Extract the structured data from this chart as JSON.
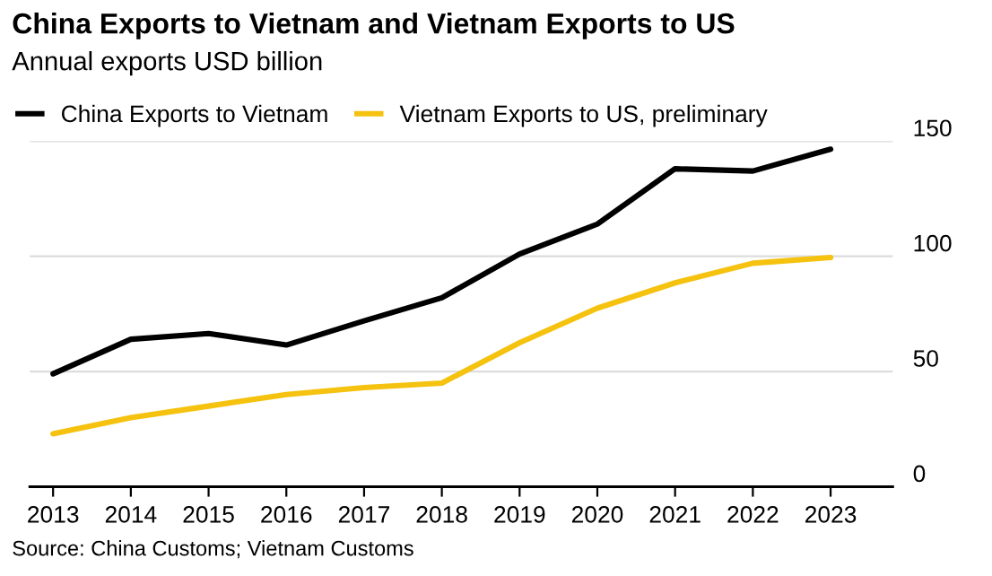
{
  "chart_data": {
    "type": "line",
    "title": "China Exports to Vietnam and Vietnam Exports to US",
    "subtitle": "Annual exports USD billion",
    "categories": [
      "2013",
      "2014",
      "2015",
      "2016",
      "2017",
      "2018",
      "2019",
      "2020",
      "2021",
      "2022",
      "2023"
    ],
    "series": [
      {
        "name": "China Exports to Vietnam",
        "color": "#000000",
        "values": [
          49,
          64,
          66.5,
          61.5,
          72,
          82,
          101,
          114,
          138,
          137,
          146.5
        ]
      },
      {
        "name": "Vietnam Exports to US, preliminary",
        "color": "#f5c20f",
        "values": [
          23,
          30,
          35,
          40,
          43,
          45,
          62.5,
          77.5,
          88.5,
          97,
          99.5
        ]
      }
    ],
    "ylim": [
      0,
      150
    ],
    "yticks": [
      0,
      50,
      100,
      150
    ],
    "grid": "y",
    "legend": "top left",
    "annotations": [
      "Source: China Customs; Vietnam Customs"
    ]
  }
}
